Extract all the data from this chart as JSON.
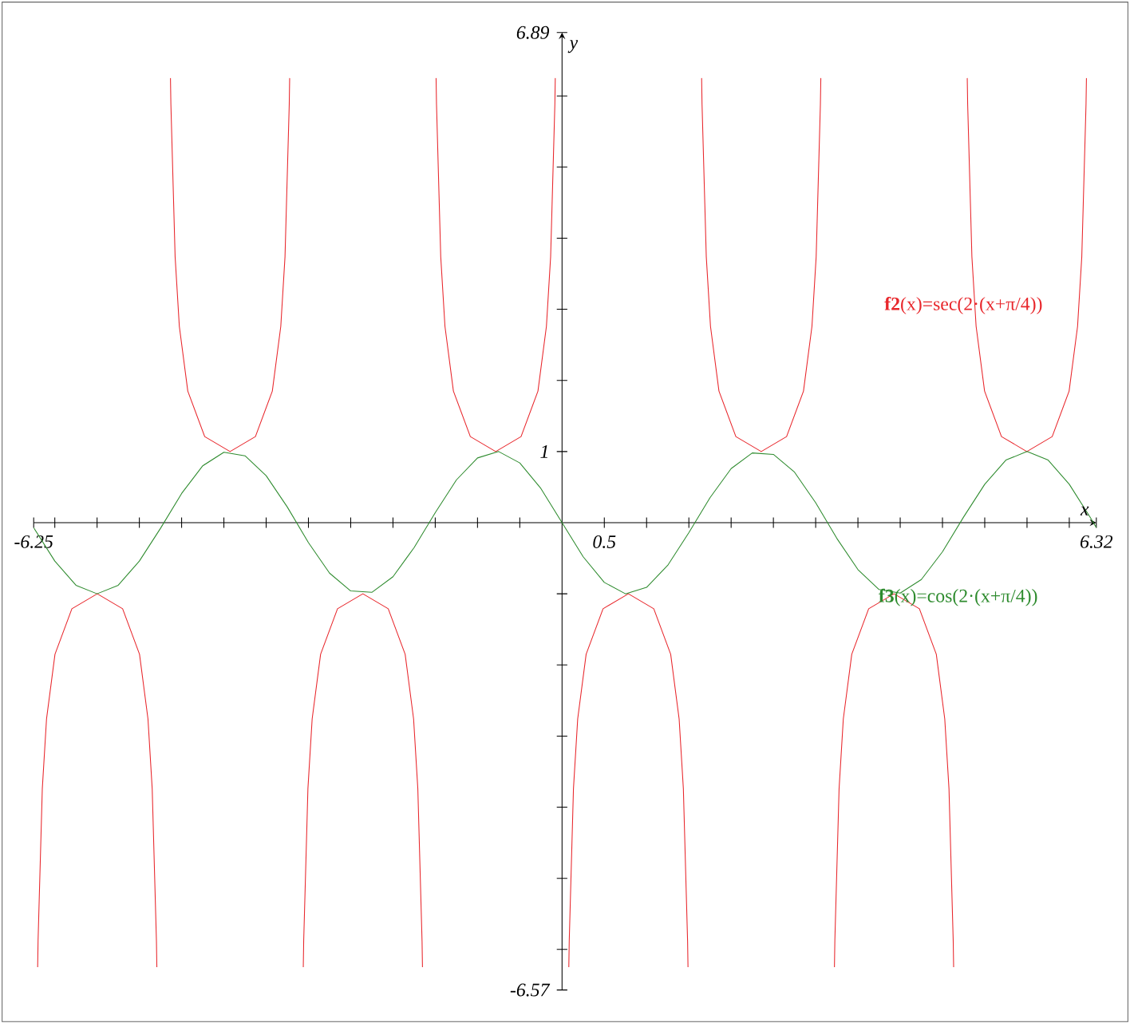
{
  "chart_data": {
    "type": "line",
    "xlabel": "x",
    "ylabel": "y",
    "xlim": [
      -6.25,
      6.32
    ],
    "ylim": [
      -6.57,
      6.89
    ],
    "xticks": [
      -6.25,
      {
        "value": -6,
        "label": null
      },
      {
        "value": -5.5,
        "label": null
      },
      {
        "value": -5,
        "label": null
      },
      {
        "value": -4.5,
        "label": null
      },
      {
        "value": -4,
        "label": null
      },
      {
        "value": -3.5,
        "label": null
      },
      {
        "value": -3,
        "label": null
      },
      {
        "value": -2.5,
        "label": null
      },
      {
        "value": -2,
        "label": null
      },
      {
        "value": -1.5,
        "label": null
      },
      {
        "value": -1,
        "label": null
      },
      {
        "value": -0.5,
        "label": null
      },
      0.5,
      {
        "value": 1,
        "label": null
      },
      {
        "value": 1.5,
        "label": null
      },
      {
        "value": 2,
        "label": null
      },
      {
        "value": 2.5,
        "label": null
      },
      {
        "value": 3,
        "label": null
      },
      {
        "value": 3.5,
        "label": null
      },
      {
        "value": 4,
        "label": null
      },
      {
        "value": 4.5,
        "label": null
      },
      {
        "value": 5,
        "label": null
      },
      {
        "value": 5.5,
        "label": null
      },
      {
        "value": 6,
        "label": null
      },
      6.32
    ],
    "yticks": [
      -6.57,
      {
        "value": -6,
        "label": null
      },
      {
        "value": -5,
        "label": null
      },
      {
        "value": -4,
        "label": null
      },
      {
        "value": -3,
        "label": null
      },
      {
        "value": -2,
        "label": null
      },
      {
        "value": -1,
        "label": null
      },
      1,
      {
        "value": 2,
        "label": null
      },
      {
        "value": 3,
        "label": null
      },
      {
        "value": 4,
        "label": null
      },
      {
        "value": 5,
        "label": null
      },
      {
        "value": 6,
        "label": null
      },
      6.89
    ],
    "grid": false,
    "legend": false,
    "marker": "none",
    "line_style": "solid",
    "series": [
      {
        "name": "**f2**(x)=sec(2·(x+π/4))",
        "color": "#e8262b",
        "x": [
          -6.203,
          -6.198,
          -6.148,
          -6.098,
          -5.998,
          -5.798,
          -5.498,
          -5.198,
          -4.998,
          -4.898,
          -4.848,
          -4.798,
          -4.793,
          -4.712,
          -4.632,
          -4.627,
          -4.577,
          -4.527,
          -4.427,
          -4.227,
          -3.927,
          -3.627,
          -3.427,
          -3.327,
          -3.277,
          -3.227,
          -3.222,
          -3.142,
          -3.061,
          -3.056,
          -3.006,
          -2.956,
          -2.856,
          -2.656,
          -2.356,
          -2.056,
          -1.856,
          -1.756,
          -1.706,
          -1.656,
          -1.651,
          -1.571,
          -1.49,
          -1.485,
          -1.435,
          -1.385,
          -1.285,
          -1.085,
          -0.785,
          -0.485,
          -0.285,
          -0.185,
          -0.135,
          -0.085,
          -0.08,
          0,
          0.08,
          0.085,
          0.135,
          0.185,
          0.285,
          0.485,
          0.785,
          1.085,
          1.285,
          1.385,
          1.435,
          1.485,
          1.49,
          1.571,
          1.651,
          1.656,
          1.706,
          1.756,
          1.856,
          2.056,
          2.356,
          2.656,
          2.856,
          2.956,
          3.006,
          3.056,
          3.061,
          3.142,
          3.222,
          3.227,
          3.277,
          3.327,
          3.427,
          3.627,
          3.927,
          4.227,
          4.427,
          4.527,
          4.577,
          4.627,
          4.632,
          4.712,
          4.793,
          4.798,
          4.848,
          4.898,
          4.998,
          5.198,
          5.498,
          5.798,
          5.998,
          6.098,
          6.148,
          6.198,
          6.203
        ],
        "values": [
          -6.25,
          -5.88,
          -3.74,
          -2.76,
          -1.85,
          -1.21,
          -1,
          -1.21,
          -1.85,
          -2.76,
          -3.74,
          -5.88,
          -6.25,
          null,
          6.25,
          5.88,
          3.74,
          2.76,
          1.85,
          1.21,
          1,
          1.21,
          1.85,
          2.76,
          3.74,
          5.88,
          6.25,
          null,
          -6.25,
          -5.88,
          -3.74,
          -2.76,
          -1.85,
          -1.21,
          -1,
          -1.21,
          -1.85,
          -2.76,
          -3.74,
          -5.88,
          -6.25,
          null,
          6.25,
          5.88,
          3.74,
          2.76,
          1.85,
          1.21,
          1,
          1.21,
          1.85,
          2.76,
          3.74,
          5.88,
          6.25,
          null,
          -6.25,
          -5.88,
          -3.74,
          -2.76,
          -1.85,
          -1.21,
          -1,
          -1.21,
          -1.85,
          -2.76,
          -3.74,
          -5.88,
          -6.25,
          null,
          6.25,
          5.88,
          3.74,
          2.76,
          1.85,
          1.21,
          1,
          1.21,
          1.85,
          2.76,
          3.74,
          5.88,
          6.25,
          null,
          -6.25,
          -5.88,
          -3.74,
          -2.76,
          -1.85,
          -1.21,
          -1,
          -1.21,
          -1.85,
          -2.76,
          -3.74,
          -5.88,
          -6.25,
          null,
          6.25,
          5.88,
          3.74,
          2.76,
          1.85,
          1.21,
          1,
          1.21,
          1.85,
          2.76,
          3.74,
          5.88,
          6.25
        ]
      },
      {
        "name": "**f3**(x)=cos(2·(x+π/4))",
        "color": "#2e8b2e",
        "x": [
          -6.25,
          -6,
          -5.75,
          -5.5,
          -5.25,
          -5,
          -4.75,
          -4.5,
          -4.25,
          -4,
          -3.75,
          -3.5,
          -3.25,
          -3,
          -2.75,
          -2.5,
          -2.25,
          -2,
          -1.75,
          -1.5,
          -1.25,
          -1,
          -0.75,
          -0.5,
          -0.25,
          0,
          0.25,
          0.5,
          0.75,
          1,
          1.25,
          1.5,
          1.75,
          2,
          2.25,
          2.5,
          2.75,
          3,
          3.25,
          3.5,
          3.75,
          4,
          4.25,
          4.5,
          4.75,
          5,
          5.25,
          5.5,
          5.75,
          6,
          6.25,
          6.32
        ],
        "values": [
          -0.07,
          -0.54,
          -0.88,
          -1,
          -0.88,
          -0.54,
          -0.08,
          0.41,
          0.8,
          0.99,
          0.94,
          0.66,
          0.22,
          -0.28,
          -0.71,
          -0.96,
          -0.98,
          -0.76,
          -0.35,
          0.14,
          0.6,
          0.91,
          1,
          0.84,
          0.48,
          0,
          -0.48,
          -0.84,
          -1,
          -0.91,
          -0.6,
          -0.14,
          0.35,
          0.76,
          0.98,
          0.96,
          0.71,
          0.28,
          -0.22,
          -0.66,
          -0.94,
          -0.99,
          -0.8,
          -0.41,
          0.08,
          0.54,
          0.88,
          1,
          0.88,
          0.54,
          0.07,
          -0.07
        ]
      }
    ]
  }
}
